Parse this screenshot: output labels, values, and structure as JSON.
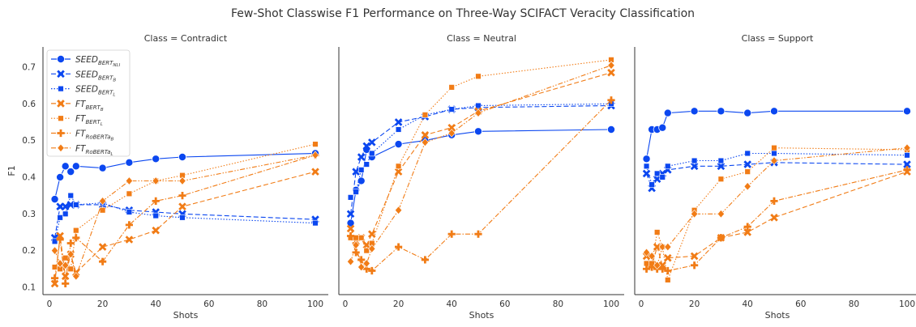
{
  "figure": {
    "title": "Few-Shot Classwise F1 Performance on Three-Way SCIFACT Veracity Classification",
    "panel_titles": [
      "Class = Contradict",
      "Class = Neutral",
      "Class = Support"
    ],
    "xlabel": "Shots",
    "ylabel": "F1"
  },
  "legend": [
    {
      "base": "SEED",
      "sub": "BERT",
      "subsub": "NLI"
    },
    {
      "base": "SEED",
      "sub": "BERT",
      "subsub": "B"
    },
    {
      "base": "SEED",
      "sub": "BERT",
      "subsub": "L"
    },
    {
      "base": "FT",
      "sub": "BERT",
      "subsub": "B"
    },
    {
      "base": "FT",
      "sub": "BERT",
      "subsub": "L"
    },
    {
      "base": "FT",
      "sub": "RoBERTa",
      "subsub": "B"
    },
    {
      "base": "FT",
      "sub": "RoBERTa",
      "subsub": "L"
    }
  ],
  "chart_data": {
    "type": "line",
    "xlim": [
      0,
      100
    ],
    "ylim": [
      0.08,
      0.755
    ],
    "x_ticks": [
      0,
      20,
      40,
      60,
      80,
      100
    ],
    "y_ticks": [
      0.1,
      0.2,
      0.3,
      0.4,
      0.5,
      0.6,
      0.7
    ],
    "legend_position": "upper-left",
    "grid": false,
    "series_styles": [
      {
        "color": "#0b47f0",
        "dash": "",
        "marker": "circle"
      },
      {
        "color": "#0b47f0",
        "dash": "6,3",
        "marker": "x"
      },
      {
        "color": "#0b47f0",
        "dash": "1.5,2",
        "marker": "square"
      },
      {
        "color": "#f17c16",
        "dash": "6,3",
        "marker": "x"
      },
      {
        "color": "#f17c16",
        "dash": "1.5,2",
        "marker": "square"
      },
      {
        "color": "#f17c16",
        "dash": "6,2,1.5,2",
        "marker": "plus"
      },
      {
        "color": "#f17c16",
        "dash": "6,2,1.5,2,1.5,2",
        "marker": "diamond"
      }
    ],
    "panels": [
      {
        "class": "Contradict",
        "series": [
          {
            "x": [
              2,
              4,
              6,
              8,
              10,
              20,
              30,
              40,
              50,
              100
            ],
            "y": [
              0.34,
              0.4,
              0.43,
              0.415,
              0.43,
              0.425,
              0.44,
              0.45,
              0.455,
              0.465
            ]
          },
          {
            "x": [
              2,
              4,
              6,
              8,
              10,
              20,
              30,
              40,
              50,
              100
            ],
            "y": [
              0.235,
              0.32,
              0.32,
              0.325,
              0.325,
              0.325,
              0.31,
              0.305,
              0.3,
              0.285
            ]
          },
          {
            "x": [
              2,
              4,
              6,
              8,
              10,
              20,
              30,
              40,
              50,
              100
            ],
            "y": [
              0.225,
              0.29,
              0.3,
              0.35,
              0.325,
              0.33,
              0.305,
              0.295,
              0.29,
              0.275
            ]
          },
          {
            "x": [
              2,
              4,
              6,
              8,
              10,
              20,
              30,
              40,
              50,
              100
            ],
            "y": [
              0.11,
              0.24,
              0.13,
              0.19,
              0.14,
              0.21,
              0.23,
              0.255,
              0.32,
              0.415
            ]
          },
          {
            "x": [
              2,
              4,
              6,
              8,
              10,
              20,
              30,
              40,
              50,
              100
            ],
            "y": [
              0.155,
              0.15,
              0.18,
              0.15,
              0.255,
              0.31,
              0.355,
              0.39,
              0.405,
              0.49
            ]
          },
          {
            "x": [
              2,
              4,
              6,
              8,
              10,
              20,
              30,
              40,
              50,
              100
            ],
            "y": [
              0.125,
              0.23,
              0.11,
              0.22,
              0.235,
              0.17,
              0.27,
              0.335,
              0.35,
              0.46
            ]
          },
          {
            "x": [
              2,
              4,
              6,
              8,
              10,
              20,
              30,
              40,
              50,
              100
            ],
            "y": [
              0.2,
              0.165,
              0.16,
              0.19,
              0.13,
              0.335,
              0.39,
              0.39,
              0.39,
              0.46
            ]
          }
        ]
      },
      {
        "class": "Neutral",
        "series": [
          {
            "x": [
              2,
              4,
              6,
              8,
              10,
              20,
              30,
              40,
              50,
              100
            ],
            "y": [
              0.275,
              0.365,
              0.39,
              0.475,
              0.455,
              0.49,
              0.5,
              0.515,
              0.525,
              0.53
            ]
          },
          {
            "x": [
              2,
              4,
              6,
              8,
              10,
              20,
              30,
              40,
              50,
              100
            ],
            "y": [
              0.3,
              0.415,
              0.455,
              0.485,
              0.495,
              0.55,
              0.565,
              0.585,
              0.59,
              0.595
            ]
          },
          {
            "x": [
              2,
              4,
              6,
              8,
              10,
              20,
              30,
              40,
              50,
              100
            ],
            "y": [
              0.345,
              0.36,
              0.42,
              0.435,
              0.465,
              0.53,
              0.57,
              0.585,
              0.595,
              0.6
            ]
          },
          {
            "x": [
              2,
              4,
              6,
              8,
              10,
              20,
              30,
              40,
              50,
              100
            ],
            "y": [
              0.26,
              0.225,
              0.235,
              0.215,
              0.245,
              0.415,
              0.515,
              0.535,
              0.58,
              0.685
            ]
          },
          {
            "x": [
              2,
              4,
              6,
              8,
              10,
              20,
              30,
              40,
              50,
              100
            ],
            "y": [
              0.235,
              0.235,
              0.235,
              0.2,
              0.22,
              0.43,
              0.57,
              0.645,
              0.675,
              0.72
            ]
          },
          {
            "x": [
              2,
              4,
              6,
              8,
              10,
              20,
              30,
              40,
              50,
              100
            ],
            "y": [
              0.24,
              0.195,
              0.175,
              0.15,
              0.145,
              0.21,
              0.175,
              0.245,
              0.245,
              0.61
            ]
          },
          {
            "x": [
              2,
              4,
              6,
              8,
              10,
              20,
              30,
              40,
              50,
              100
            ],
            "y": [
              0.17,
              0.215,
              0.155,
              0.165,
              0.205,
              0.31,
              0.495,
              0.52,
              0.575,
              0.705
            ]
          }
        ]
      },
      {
        "class": "Support",
        "series": [
          {
            "x": [
              2,
              4,
              6,
              8,
              10,
              20,
              30,
              40,
              50,
              100
            ],
            "y": [
              0.45,
              0.53,
              0.53,
              0.535,
              0.575,
              0.58,
              0.58,
              0.575,
              0.58,
              0.58
            ]
          },
          {
            "x": [
              2,
              4,
              6,
              8,
              10,
              20,
              30,
              40,
              50,
              100
            ],
            "y": [
              0.41,
              0.37,
              0.395,
              0.41,
              0.42,
              0.43,
              0.43,
              0.435,
              0.44,
              0.435
            ]
          },
          {
            "x": [
              2,
              4,
              6,
              8,
              10,
              20,
              30,
              40,
              50,
              100
            ],
            "y": [
              0.43,
              0.38,
              0.41,
              0.4,
              0.43,
              0.445,
              0.445,
              0.465,
              0.465,
              0.46
            ]
          },
          {
            "x": [
              2,
              4,
              6,
              8,
              10,
              20,
              30,
              40,
              50,
              100
            ],
            "y": [
              0.185,
              0.16,
              0.21,
              0.16,
              0.18,
              0.185,
              0.235,
              0.25,
              0.29,
              0.415
            ]
          },
          {
            "x": [
              2,
              4,
              6,
              8,
              10,
              20,
              30,
              40,
              50,
              100
            ],
            "y": [
              0.165,
              0.165,
              0.25,
              0.21,
              0.12,
              0.31,
              0.395,
              0.415,
              0.48,
              0.475
            ]
          },
          {
            "x": [
              2,
              4,
              6,
              8,
              10,
              20,
              30,
              40,
              50,
              100
            ],
            "y": [
              0.15,
              0.155,
              0.15,
              0.15,
              0.145,
              0.16,
              0.235,
              0.265,
              0.335,
              0.42
            ]
          },
          {
            "x": [
              2,
              4,
              6,
              8,
              10,
              20,
              30,
              40,
              50,
              100
            ],
            "y": [
              0.195,
              0.185,
              0.16,
              0.21,
              0.21,
              0.3,
              0.3,
              0.375,
              0.445,
              0.48
            ]
          }
        ]
      }
    ]
  }
}
